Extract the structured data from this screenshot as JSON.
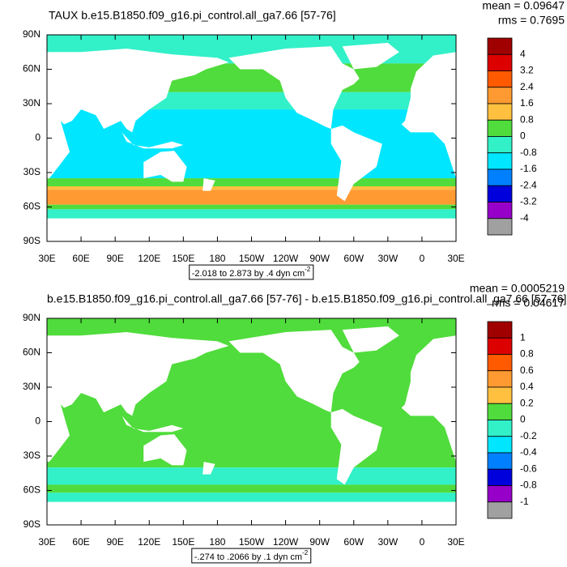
{
  "chart_data": [
    {
      "type": "contour-map",
      "title": "TAUX b.e15.B1850.f09_g16.pi_control.all_ga7.66 [57-76]",
      "stats": [
        "mean = 0.09647",
        "rms = 0.7695"
      ],
      "xlim": [
        30,
        390
      ],
      "xticks": [
        {
          "value": 30,
          "label": "30E"
        },
        {
          "value": 60,
          "label": "60E"
        },
        {
          "value": 90,
          "label": "90E"
        },
        {
          "value": 120,
          "label": "120E"
        },
        {
          "value": 150,
          "label": "150E"
        },
        {
          "value": 180,
          "label": "180"
        },
        {
          "value": 210,
          "label": "150W"
        },
        {
          "value": 240,
          "label": "120W"
        },
        {
          "value": 270,
          "label": "90W"
        },
        {
          "value": 300,
          "label": "60W"
        },
        {
          "value": 330,
          "label": "30W"
        },
        {
          "value": 360,
          "label": "0"
        },
        {
          "value": 390,
          "label": "30E"
        }
      ],
      "ylim": [
        -90,
        90
      ],
      "yticks": [
        {
          "value": 90,
          "label": "90N"
        },
        {
          "value": 60,
          "label": "60N"
        },
        {
          "value": 30,
          "label": "30N"
        },
        0,
        {
          "value": -30,
          "label": "30S"
        },
        {
          "value": -60,
          "label": "60S"
        },
        {
          "value": -90,
          "label": "90S"
        }
      ],
      "colorbar": {
        "levels": [
          4,
          3.2,
          2.4,
          1.6,
          0.8,
          0,
          -0.8,
          -1.6,
          -2.4,
          -3.2,
          -4
        ],
        "colors": [
          "#a00000",
          "#dc0000",
          "#ff5a00",
          "#ff9a32",
          "#ffc040",
          "#50dc3c",
          "#32f0c8",
          "#00e6ff",
          "#0080ff",
          "#0000dc",
          "#9600c8",
          "#a0a0a0"
        ]
      },
      "info": {
        "text": "-2.018 to 2.873 by .4 dyn cm",
        "superscript": "-2"
      }
    },
    {
      "type": "contour-map",
      "title": "b.e15.B1850.f09_g16.pi_control.all_ga7.66 [57-76] - b.e15.B1850.f09_g16.pi_control.all_ga7.66 [57-76]",
      "stats": [
        "mean = 0.0005219",
        "rms = 0.04617"
      ],
      "xlim": [
        30,
        390
      ],
      "xticks": [
        {
          "value": 30,
          "label": "30E"
        },
        {
          "value": 60,
          "label": "60E"
        },
        {
          "value": 90,
          "label": "90E"
        },
        {
          "value": 120,
          "label": "120E"
        },
        {
          "value": 150,
          "label": "150E"
        },
        {
          "value": 180,
          "label": "180"
        },
        {
          "value": 210,
          "label": "150W"
        },
        {
          "value": 240,
          "label": "120W"
        },
        {
          "value": 270,
          "label": "90W"
        },
        {
          "value": 300,
          "label": "60W"
        },
        {
          "value": 330,
          "label": "30W"
        },
        {
          "value": 360,
          "label": "0"
        },
        {
          "value": 390,
          "label": "30E"
        }
      ],
      "ylim": [
        -90,
        90
      ],
      "yticks": [
        {
          "value": 90,
          "label": "90N"
        },
        {
          "value": 60,
          "label": "60N"
        },
        {
          "value": 30,
          "label": "30N"
        },
        0,
        {
          "value": -30,
          "label": "30S"
        },
        {
          "value": -60,
          "label": "60S"
        },
        {
          "value": -90,
          "label": "90S"
        }
      ],
      "colorbar": {
        "levels": [
          1,
          0.8,
          0.6,
          0.4,
          0.2,
          0,
          -0.2,
          -0.4,
          -0.6,
          -0.8,
          -1
        ],
        "colors": [
          "#a00000",
          "#dc0000",
          "#ff5a00",
          "#ff9a32",
          "#ffc040",
          "#50dc3c",
          "#32f0c8",
          "#00e6ff",
          "#0080ff",
          "#0000dc",
          "#9600c8",
          "#a0a0a0"
        ]
      },
      "info": {
        "text": "-.274 to .2066 by .1 dyn cm",
        "superscript": "-2"
      }
    }
  ]
}
